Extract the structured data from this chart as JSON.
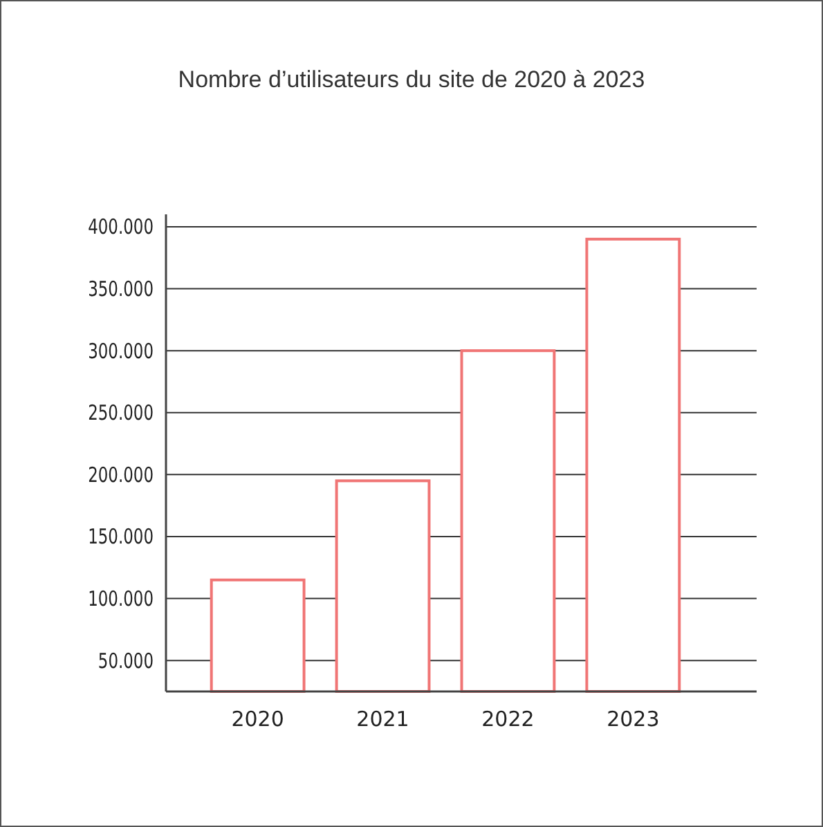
{
  "chart_data": {
    "type": "bar",
    "title": "Nombre d’utilisateurs du site de 2020 à 2023",
    "categories": [
      "2020",
      "2021",
      "2022",
      "2023"
    ],
    "values": [
      115000,
      195000,
      300000,
      390000
    ],
    "color": "#f07575",
    "ylim": [
      25000,
      410000
    ],
    "yticks": [
      {
        "value": 50000,
        "label": "50.000"
      },
      {
        "value": 100000,
        "label": "100.000"
      },
      {
        "value": 150000,
        "label": "150.000"
      },
      {
        "value": 200000,
        "label": "200.000"
      },
      {
        "value": 250000,
        "label": "250.000"
      },
      {
        "value": 300000,
        "label": "300.000"
      },
      {
        "value": 350000,
        "label": "350.000"
      },
      {
        "value": 400000,
        "label": "400.000"
      }
    ],
    "grid": "y"
  }
}
